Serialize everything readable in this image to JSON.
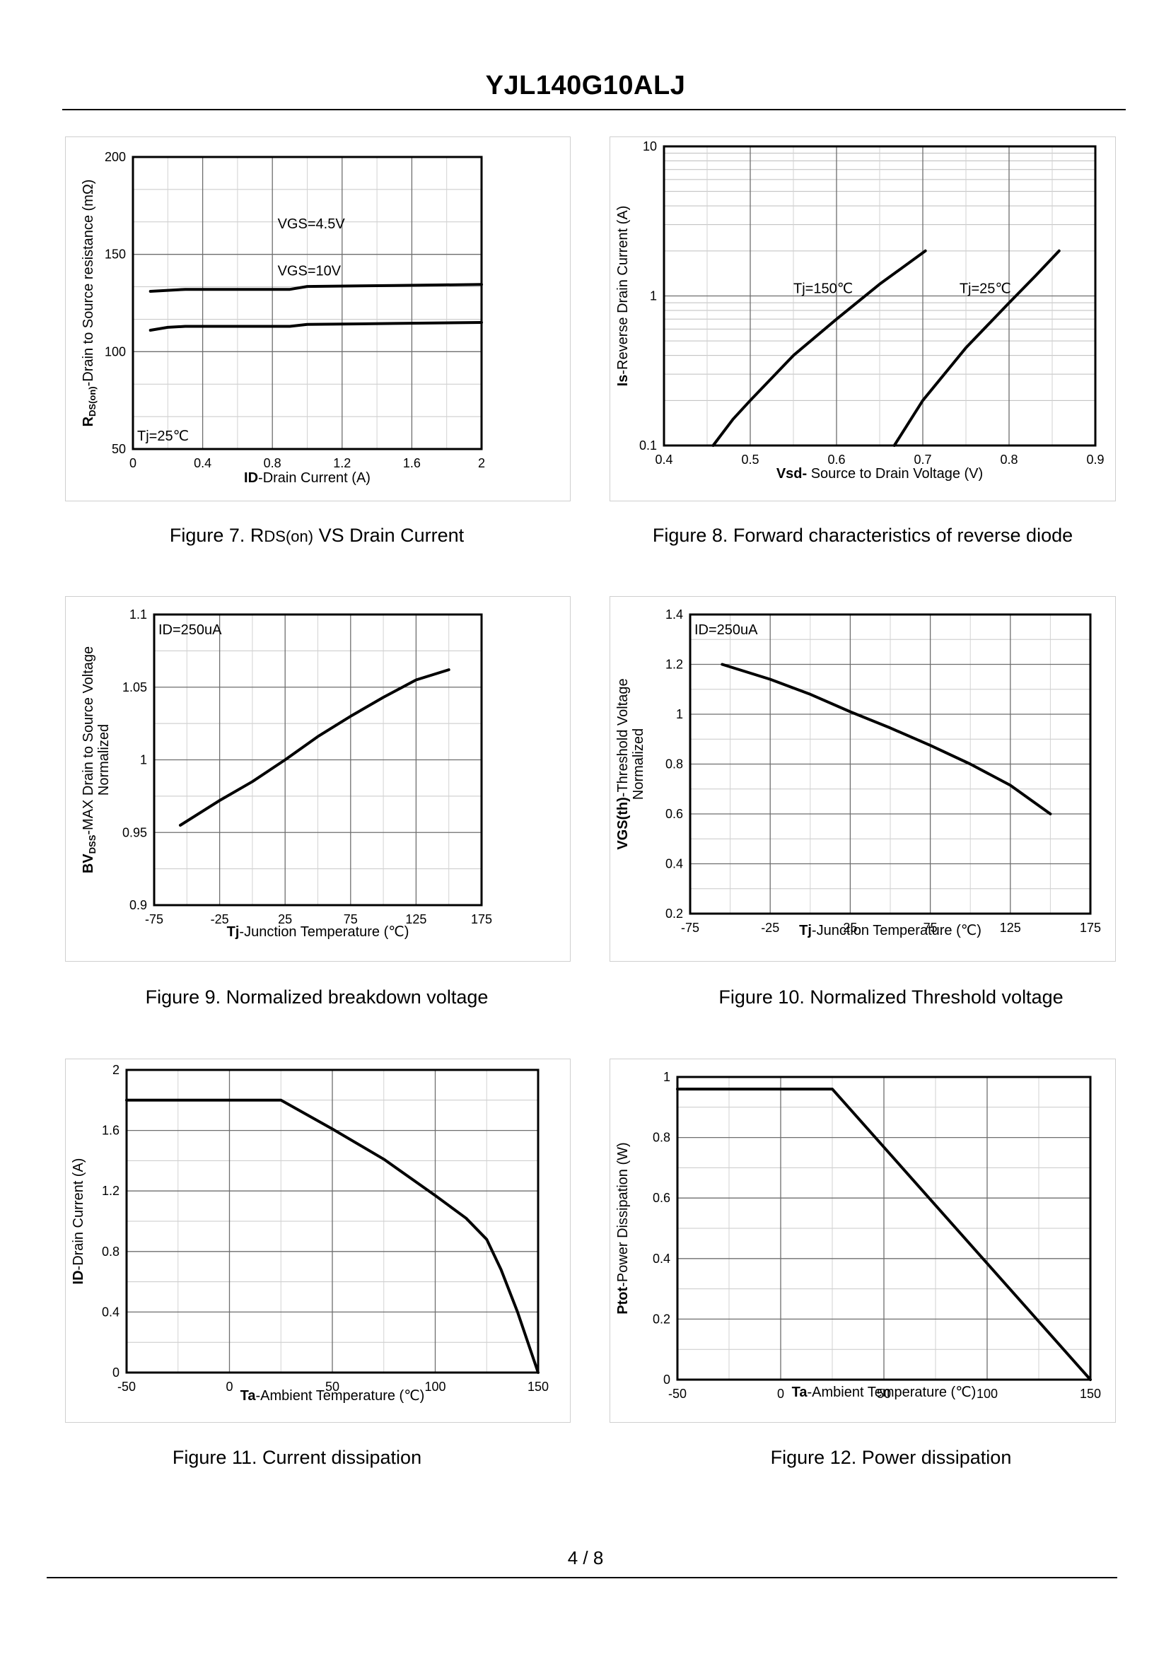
{
  "document": {
    "title": "YJL140G10ALJ",
    "page_number": "4 / 8"
  },
  "chart_data": [
    {
      "id": "fig7",
      "type": "line",
      "caption_prefix": "Figure 7.  R",
      "caption_sub": "DS(on)",
      "caption_suffix": " VS Drain Current",
      "ylabel_bold": "R",
      "ylabel_sub": "DS(on)",
      "ylabel_rest": "-Drain to Source resistance (mΩ)",
      "xlabel_bold": "ID",
      "xlabel_rest": "-Drain Current (A)",
      "xlim": [
        0,
        2
      ],
      "ylim": [
        50,
        200
      ],
      "x_ticks": [
        "0",
        "0.4",
        "0.8",
        "1.2",
        "1.6",
        "2"
      ],
      "y_ticks": [
        "50",
        "100",
        "150",
        "200"
      ],
      "annotation": "Tj=25℃",
      "series": [
        {
          "name": "VGS=4.5V",
          "x": [
            0.1,
            0.3,
            0.6,
            0.9,
            1.0,
            1.5,
            2.0
          ],
          "y": [
            131,
            132,
            132,
            132,
            133.5,
            134,
            134.5
          ]
        },
        {
          "name": "VGS=10V",
          "x": [
            0.1,
            0.2,
            0.3,
            0.6,
            0.9,
            1.0,
            1.5,
            2.0
          ],
          "y": [
            111,
            112.5,
            113,
            113,
            113,
            114,
            114.5,
            115
          ]
        }
      ]
    },
    {
      "id": "fig8",
      "type": "line",
      "caption_prefix": "Figure 8.  Forward characteristics of reverse diode",
      "ylabel_bold": "Is",
      "ylabel_rest": "-Reverse  Drain Current (A)",
      "xlabel_bold": "Vsd-",
      "xlabel_rest": " Source to Drain Voltage (V)",
      "xlim": [
        0.4,
        0.9
      ],
      "ylim": [
        0.1,
        10
      ],
      "y_scale": "log",
      "x_ticks": [
        "0.4",
        "0.5",
        "0.6",
        "0.7",
        "0.8",
        "0.9"
      ],
      "y_ticks": [
        "0.1",
        "1",
        "10"
      ],
      "series": [
        {
          "name": "Tj=150℃",
          "x": [
            0.457,
            0.48,
            0.5,
            0.55,
            0.6,
            0.65,
            0.703
          ],
          "y": [
            0.1,
            0.15,
            0.2,
            0.4,
            0.7,
            1.2,
            2.0
          ]
        },
        {
          "name": "Tj=25℃",
          "x": [
            0.667,
            0.7,
            0.75,
            0.8,
            0.83,
            0.858
          ],
          "y": [
            0.1,
            0.2,
            0.45,
            0.9,
            1.35,
            2.0
          ]
        }
      ]
    },
    {
      "id": "fig9",
      "type": "line",
      "caption_prefix": "Figure 9.  Normalized breakdown voltage",
      "ylabel_bold": "BV",
      "ylabel_sub": "DSS",
      "ylabel_rest": "-MAX Drain to Source Voltage",
      "ylabel_line2": "Normalized",
      "xlabel_bold": "Tj",
      "xlabel_rest": "-Junction  Temperature  (℃)",
      "xlim": [
        -75,
        175
      ],
      "ylim": [
        0.9,
        1.1
      ],
      "x_ticks": [
        "-75",
        "-25",
        "25",
        "75",
        "125",
        "175"
      ],
      "y_ticks": [
        "0.9",
        "0.95",
        "1",
        "1.05",
        "1.1"
      ],
      "annotation": "ID=250uA",
      "series": [
        {
          "name": "BVdss",
          "x": [
            -55,
            -25,
            0,
            25,
            50,
            75,
            100,
            125,
            150
          ],
          "y": [
            0.955,
            0.972,
            0.985,
            1.0,
            1.016,
            1.03,
            1.043,
            1.055,
            1.062
          ]
        }
      ]
    },
    {
      "id": "fig10",
      "type": "line",
      "caption_prefix": "Figure 10.  Normalized Threshold voltage",
      "ylabel_bold": "VGS(th)",
      "ylabel_rest": "-Threshold  Voltage",
      "ylabel_line2": "Normalized",
      "xlabel_bold": "Tj",
      "xlabel_rest": "-Junction  Temperature  (℃)",
      "xlim": [
        -75,
        175
      ],
      "ylim": [
        0.2,
        1.4
      ],
      "x_ticks": [
        "-75",
        "-25",
        "25",
        "75",
        "125",
        "175"
      ],
      "y_ticks": [
        "0.2",
        "0.4",
        "0.6",
        "0.8",
        "1",
        "1.2",
        "1.4"
      ],
      "annotation": "ID=250uA",
      "series": [
        {
          "name": "VGS(th)",
          "x": [
            -55,
            -25,
            0,
            25,
            50,
            75,
            100,
            125,
            150
          ],
          "y": [
            1.2,
            1.14,
            1.08,
            1.01,
            0.945,
            0.875,
            0.8,
            0.715,
            0.6
          ]
        }
      ]
    },
    {
      "id": "fig11",
      "type": "line",
      "caption_prefix": "Figure 11.  Current dissipation",
      "ylabel_bold": "ID",
      "ylabel_rest": "-Drain Current (A)",
      "xlabel_bold": "Ta",
      "xlabel_rest": "-Ambient Temperature  (℃)",
      "xlim": [
        -50,
        150
      ],
      "ylim": [
        0,
        2
      ],
      "x_ticks": [
        "-50",
        "0",
        "50",
        "100",
        "150"
      ],
      "y_ticks": [
        "0",
        "0.4",
        "0.8",
        "1.2",
        "1.6",
        "2"
      ],
      "series": [
        {
          "name": "ID",
          "x": [
            -50,
            25,
            50,
            75,
            100,
            115,
            125,
            132,
            140,
            150
          ],
          "y": [
            1.8,
            1.8,
            1.61,
            1.41,
            1.17,
            1.02,
            0.88,
            0.68,
            0.4,
            0
          ]
        }
      ]
    },
    {
      "id": "fig12",
      "type": "line",
      "caption_prefix": "Figure 12.  Power dissipation",
      "ylabel_bold": "Ptot",
      "ylabel_rest": "-Power Dissipation (W)",
      "xlabel_bold": "Ta",
      "xlabel_rest": "-Ambient Temperature  (℃)",
      "xlim": [
        -50,
        150
      ],
      "ylim": [
        0,
        1
      ],
      "x_ticks": [
        "-50",
        "0",
        "50",
        "100",
        "150"
      ],
      "y_ticks": [
        "0",
        "0.2",
        "0.4",
        "0.6",
        "0.8",
        "1"
      ],
      "series": [
        {
          "name": "Ptot",
          "x": [
            -50,
            25,
            150
          ],
          "y": [
            0.96,
            0.96,
            0
          ]
        }
      ]
    }
  ]
}
